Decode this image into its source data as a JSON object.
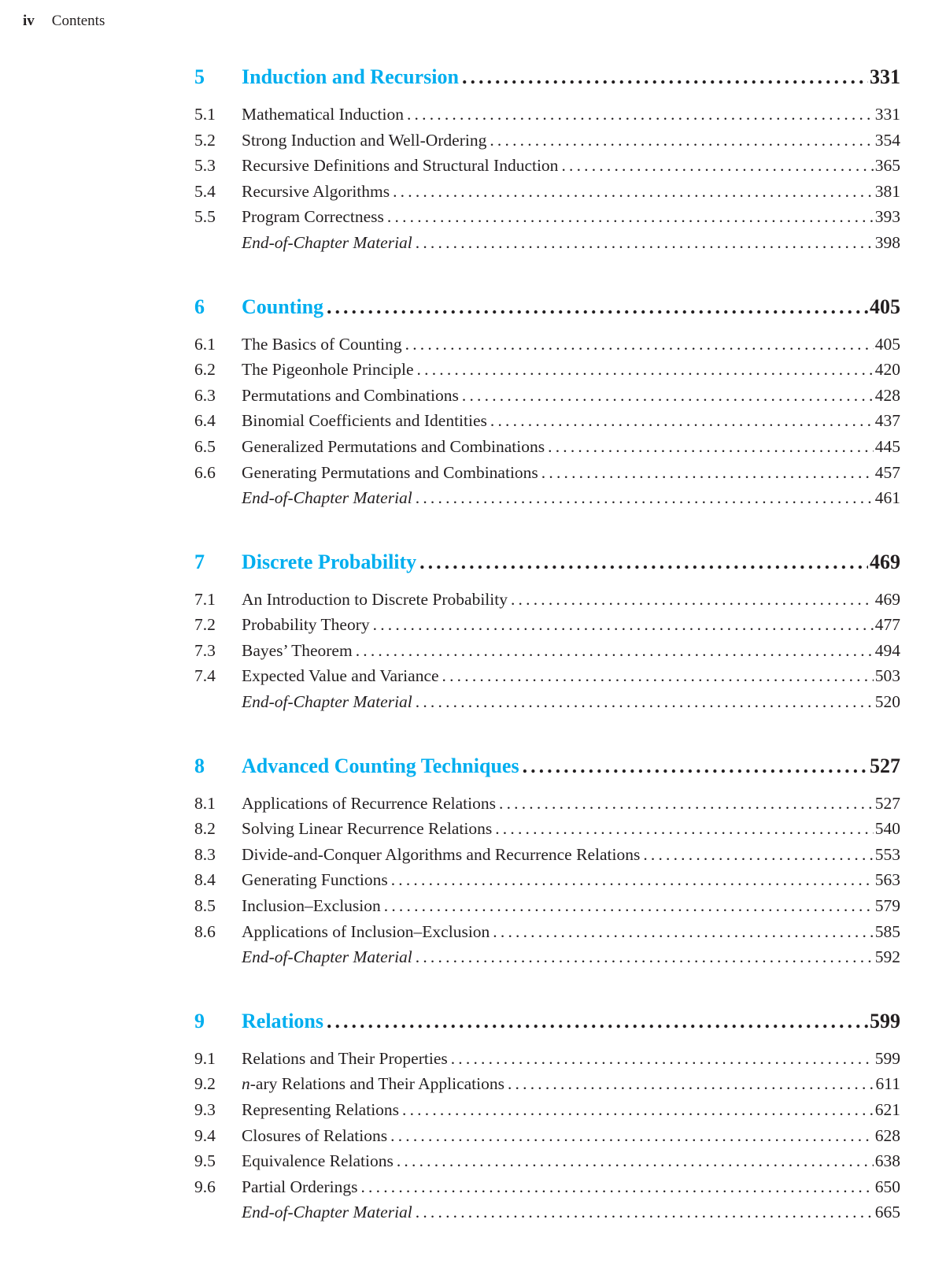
{
  "header": {
    "page_number": "iv",
    "title": "Contents"
  },
  "accent_color": "#00aeef",
  "chapters": [
    {
      "number": "5",
      "title": "Induction and Recursion",
      "page": "331",
      "sections": [
        {
          "number": "5.1",
          "title": "Mathematical Induction",
          "page": "331"
        },
        {
          "number": "5.2",
          "title": "Strong Induction and Well-Ordering",
          "page": "354"
        },
        {
          "number": "5.3",
          "title": "Recursive Definitions and Structural Induction",
          "page": "365"
        },
        {
          "number": "5.4",
          "title": "Recursive Algorithms",
          "page": "381"
        },
        {
          "number": "5.5",
          "title": "Program Correctness",
          "page": "393"
        },
        {
          "number": "",
          "title": "End-of-Chapter Material",
          "page": "398"
        }
      ]
    },
    {
      "number": "6",
      "title": "Counting",
      "page": "405",
      "sections": [
        {
          "number": "6.1",
          "title": "The Basics of Counting",
          "page": "405"
        },
        {
          "number": "6.2",
          "title": "The Pigeonhole Principle",
          "page": "420"
        },
        {
          "number": "6.3",
          "title": "Permutations and Combinations",
          "page": "428"
        },
        {
          "number": "6.4",
          "title": "Binomial Coefficients and Identities",
          "page": "437"
        },
        {
          "number": "6.5",
          "title": "Generalized Permutations and Combinations",
          "page": "445"
        },
        {
          "number": "6.6",
          "title": "Generating Permutations and Combinations",
          "page": "457"
        },
        {
          "number": "",
          "title": "End-of-Chapter Material",
          "page": "461"
        }
      ]
    },
    {
      "number": "7",
      "title": "Discrete Probability",
      "page": "469",
      "sections": [
        {
          "number": "7.1",
          "title": "An Introduction to Discrete Probability",
          "page": "469"
        },
        {
          "number": "7.2",
          "title": "Probability Theory",
          "page": "477"
        },
        {
          "number": "7.3",
          "title": "Bayes’ Theorem",
          "page": "494"
        },
        {
          "number": "7.4",
          "title": "Expected Value and Variance",
          "page": "503"
        },
        {
          "number": "",
          "title": "End-of-Chapter Material",
          "page": "520"
        }
      ]
    },
    {
      "number": "8",
      "title": "Advanced Counting Techniques",
      "page": "527",
      "sections": [
        {
          "number": "8.1",
          "title": "Applications of Recurrence Relations",
          "page": "527"
        },
        {
          "number": "8.2",
          "title": "Solving Linear Recurrence Relations",
          "page": "540"
        },
        {
          "number": "8.3",
          "title": "Divide-and-Conquer Algorithms and Recurrence Relations",
          "page": "553"
        },
        {
          "number": "8.4",
          "title": "Generating Functions",
          "page": "563"
        },
        {
          "number": "8.5",
          "title": "Inclusion–Exclusion",
          "page": "579"
        },
        {
          "number": "8.6",
          "title": "Applications of Inclusion–Exclusion",
          "page": "585"
        },
        {
          "number": "",
          "title": "End-of-Chapter Material",
          "page": "592"
        }
      ]
    },
    {
      "number": "9",
      "title": "Relations",
      "page": "599",
      "sections": [
        {
          "number": "9.1",
          "title": "Relations and Their Properties",
          "page": "599"
        },
        {
          "number": "9.2",
          "italic_prefix": "n",
          "title": "-ary Relations and Their Applications",
          "page": "611"
        },
        {
          "number": "9.3",
          "title": "Representing Relations",
          "page": "621"
        },
        {
          "number": "9.4",
          "title": "Closures of Relations",
          "page": "628"
        },
        {
          "number": "9.5",
          "title": "Equivalence Relations",
          "page": "638"
        },
        {
          "number": "9.6",
          "title": "Partial Orderings",
          "page": "650"
        },
        {
          "number": "",
          "title": "End-of-Chapter Material",
          "page": "665"
        }
      ]
    }
  ]
}
